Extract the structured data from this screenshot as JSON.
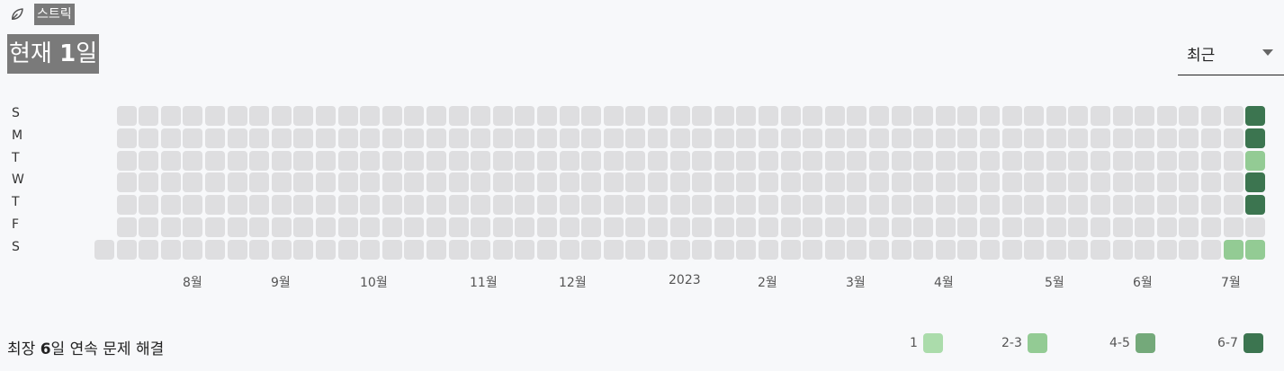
{
  "header": {
    "icon": "leaf-icon",
    "section_label": "스트릭",
    "current_prefix": "현재 ",
    "current_value": "1",
    "current_suffix": "일"
  },
  "period_select": {
    "value": "최근",
    "icon": "chevron-down-icon"
  },
  "day_labels": [
    "S",
    "M",
    "T",
    "W",
    "T",
    "F",
    "S"
  ],
  "month_labels": [
    "8월",
    "9월",
    "10월",
    "11월",
    "12월",
    "2023",
    "2월",
    "3월",
    "4월",
    "5월",
    "6월",
    "7월"
  ],
  "heatmap": {
    "levels": {
      "0": "#dedee0",
      "1": "#abdcab",
      "2": "#93cb94",
      "3": "#74a97a",
      "4": "#3c7550"
    },
    "partial_week_levels": [
      0
    ],
    "last_week_levels": [
      4,
      4,
      2,
      4,
      4,
      0,
      2
    ],
    "second_last_sat_level": 2
  },
  "footer": {
    "prefix": "최장 ",
    "value": "6",
    "suffix": "일 연속 문제 해결"
  },
  "legend": [
    {
      "label": "1",
      "color": "#abdcab"
    },
    {
      "label": "2-3",
      "color": "#93cb94"
    },
    {
      "label": "4-5",
      "color": "#74a97a"
    },
    {
      "label": "6-7",
      "color": "#3c7550"
    }
  ]
}
